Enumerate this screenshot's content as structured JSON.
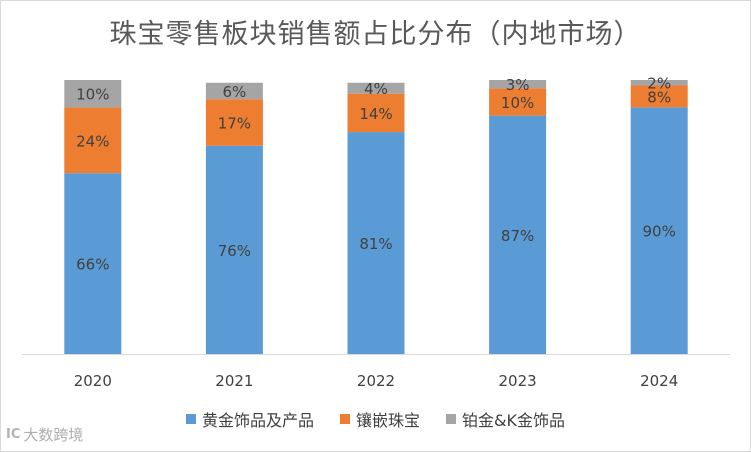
{
  "chart_data": {
    "type": "bar",
    "stacked": true,
    "percent": true,
    "title": "珠宝零售板块销售额占比分布（内地市场）",
    "xlabel": "",
    "ylabel": "",
    "ylim": [
      0,
      100
    ],
    "grid": false,
    "legend_position": "bottom",
    "categories": [
      "2020",
      "2021",
      "2022",
      "2023",
      "2024"
    ],
    "series": [
      {
        "name": "黄金饰品及产品",
        "color": "#5b9bd5",
        "values": [
          66,
          76,
          81,
          87,
          90
        ],
        "labels": [
          "66%",
          "76%",
          "81%",
          "87%",
          "90%"
        ]
      },
      {
        "name": "镶嵌珠宝",
        "color": "#ed7d31",
        "values": [
          24,
          17,
          14,
          10,
          8
        ],
        "labels": [
          "24%",
          "17%",
          "14%",
          "10%",
          "8%"
        ]
      },
      {
        "name": "铂金&K金饰品",
        "color": "#a5a5a5",
        "values": [
          10,
          6,
          4,
          3,
          2
        ],
        "labels": [
          "10%",
          "6%",
          "4%",
          "3%",
          "2%"
        ]
      }
    ]
  },
  "watermark": {
    "logo": "IC",
    "text": "大数跨境"
  }
}
